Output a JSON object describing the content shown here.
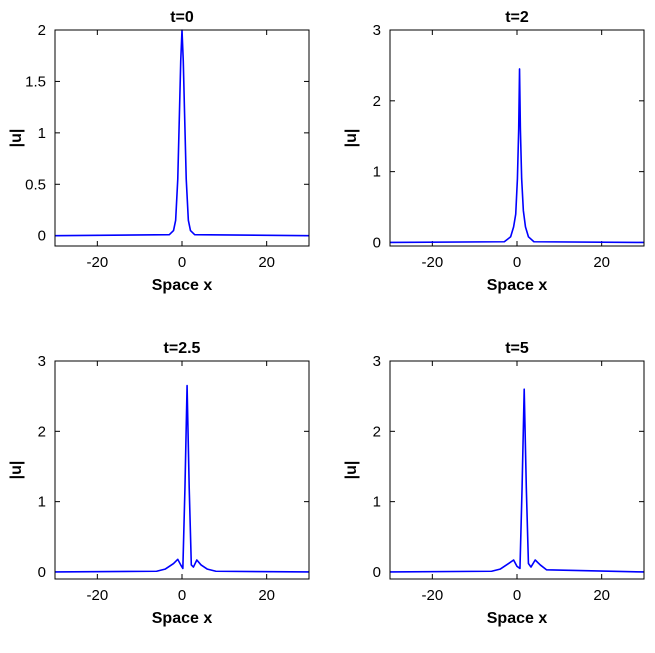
{
  "chart_data": [
    {
      "type": "line",
      "title": "t=0",
      "xlabel": "Space x",
      "ylabel": "|u|",
      "xlim": [
        -30,
        30
      ],
      "ylim": [
        -0.1,
        2.0
      ],
      "xticks": [
        -20,
        0,
        20
      ],
      "yticks": [
        0,
        0.5,
        1,
        1.5,
        2
      ],
      "ytick_labels": [
        "0",
        "0.5",
        "1",
        "1.5",
        "2"
      ],
      "grid": false,
      "series": [
        {
          "color": "#0000ff",
          "x": [
            -30,
            -3,
            -2,
            -1.5,
            -1,
            -0.6,
            -0.3,
            0,
            0.3,
            0.6,
            1,
            1.5,
            2,
            3,
            30
          ],
          "y": [
            0,
            0.01,
            0.05,
            0.15,
            0.55,
            1.2,
            1.7,
            2.0,
            1.7,
            1.2,
            0.55,
            0.15,
            0.05,
            0.01,
            0
          ]
        }
      ]
    },
    {
      "type": "line",
      "title": "t=2",
      "xlabel": "Space x",
      "ylabel": "|u|",
      "xlim": [
        -30,
        30
      ],
      "ylim": [
        -0.05,
        3.0
      ],
      "xticks": [
        -20,
        0,
        20
      ],
      "yticks": [
        0,
        1,
        2,
        3
      ],
      "ytick_labels": [
        "0",
        "1",
        "2",
        "3"
      ],
      "grid": false,
      "series": [
        {
          "color": "#0000ff",
          "x": [
            -30,
            -3,
            -1.5,
            -0.8,
            -0.3,
            0.1,
            0.4,
            0.6,
            0.8,
            1.1,
            1.5,
            2,
            2.7,
            4,
            30
          ],
          "y": [
            0,
            0.01,
            0.08,
            0.22,
            0.4,
            0.9,
            1.6,
            2.45,
            1.6,
            0.9,
            0.45,
            0.22,
            0.08,
            0.01,
            0
          ]
        }
      ]
    },
    {
      "type": "line",
      "title": "t=2.5",
      "xlabel": "Space x",
      "ylabel": "|u|",
      "xlim": [
        -30,
        30
      ],
      "ylim": [
        -0.1,
        3.0
      ],
      "xticks": [
        -20,
        0,
        20
      ],
      "yticks": [
        0,
        1,
        2,
        3
      ],
      "ytick_labels": [
        "0",
        "1",
        "2",
        "3"
      ],
      "grid": false,
      "series": [
        {
          "color": "#0000ff",
          "x": [
            -30,
            -6,
            -4,
            -2,
            -1,
            -0.3,
            0.2,
            0.7,
            1.2,
            1.7,
            2.2,
            2.7,
            3.5,
            4.5,
            6,
            8,
            30
          ],
          "y": [
            0,
            0.01,
            0.04,
            0.12,
            0.18,
            0.1,
            0.05,
            1.2,
            2.65,
            1.2,
            0.1,
            0.07,
            0.17,
            0.1,
            0.04,
            0.01,
            0
          ]
        }
      ]
    },
    {
      "type": "line",
      "title": "t=5",
      "xlabel": "Space x",
      "ylabel": "|u|",
      "xlim": [
        -30,
        30
      ],
      "ylim": [
        -0.1,
        3.0
      ],
      "xticks": [
        -20,
        0,
        20
      ],
      "yticks": [
        0,
        1,
        2,
        3
      ],
      "ytick_labels": [
        "0",
        "1",
        "2",
        "3"
      ],
      "grid": false,
      "series": [
        {
          "color": "#0000ff",
          "x": [
            -30,
            -6,
            -4,
            -2,
            -0.8,
            0,
            0.7,
            1.2,
            1.7,
            2.2,
            2.7,
            3.3,
            4.3,
            5.5,
            7,
            30
          ],
          "y": [
            0,
            0.01,
            0.04,
            0.12,
            0.17,
            0.08,
            0.05,
            1.2,
            2.6,
            1.2,
            0.12,
            0.07,
            0.17,
            0.1,
            0.03,
            0
          ]
        }
      ]
    }
  ]
}
